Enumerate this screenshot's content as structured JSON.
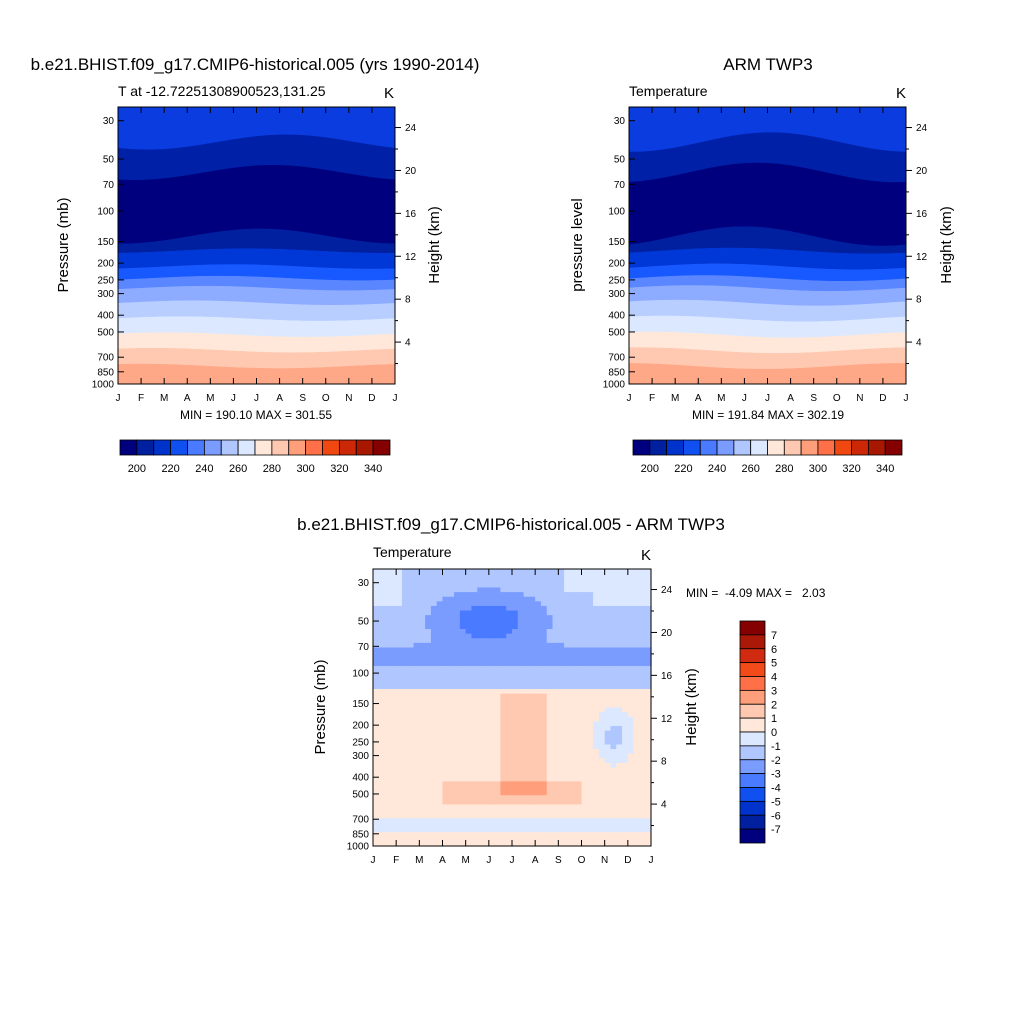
{
  "chart_data": [
    {
      "type": "heatmap",
      "title": "b.e21.BHIST.f09_g17.CMIP6-historical.005 (yrs 1990-2014)",
      "subtitle_left": "T at -12.72251308900523,131.25",
      "units": "K",
      "ylabel": "Pressure (mb)",
      "ylabel_right": "Height (km)",
      "x_ticks": [
        "J",
        "F",
        "M",
        "A",
        "M",
        "J",
        "J",
        "A",
        "S",
        "O",
        "N",
        "D",
        "J"
      ],
      "y_ticks": [
        30,
        50,
        70,
        100,
        150,
        200,
        250,
        300,
        400,
        500,
        700,
        850,
        1000
      ],
      "y_right_ticks": [
        24,
        20,
        16,
        12,
        8,
        4
      ],
      "ylim": [
        1000,
        25
      ],
      "stats": "MIN = 190.10 MAX = 301.55",
      "colorbar_ticks": [
        200,
        220,
        240,
        260,
        280,
        300,
        320,
        340
      ],
      "colorbar_colors": [
        "#00007f",
        "#0020a0",
        "#0033cc",
        "#1050f0",
        "#4a7aff",
        "#7a9cff",
        "#b0c6ff",
        "#dbe8ff",
        "#ffe8da",
        "#ffc8b0",
        "#ff9e7a",
        "#ff7048",
        "#f04810",
        "#cc2808",
        "#a81800",
        "#850000"
      ],
      "levels_approx_p": [
        25,
        40,
        60,
        140,
        170,
        210,
        245,
        280,
        340,
        420,
        520,
        640,
        790,
        1000
      ],
      "level_colors": [
        "#0a3ce0",
        "#0020a8",
        "#00007f",
        "#0020a0",
        "#0038d8",
        "#1858ff",
        "#5a86ff",
        "#8eacff",
        "#b8ceff",
        "#dbe8ff",
        "#ffe8da",
        "#ffc8b0",
        "#ffa888",
        "#ff8858"
      ]
    },
    {
      "type": "heatmap",
      "title": "ARM TWP3",
      "subtitle_left": "Temperature",
      "units": "K",
      "ylabel": "pressure level",
      "ylabel_right": "Height (km)",
      "x_ticks": [
        "J",
        "F",
        "M",
        "A",
        "M",
        "J",
        "J",
        "A",
        "S",
        "O",
        "N",
        "D",
        "J"
      ],
      "y_ticks": [
        30,
        50,
        70,
        100,
        150,
        200,
        250,
        300,
        400,
        500,
        700,
        850,
        1000
      ],
      "y_right_ticks": [
        24,
        20,
        16,
        12,
        8,
        4
      ],
      "ylim": [
        1000,
        25
      ],
      "stats": "MIN = 191.84 MAX = 302.19",
      "colorbar_ticks": [
        200,
        220,
        240,
        260,
        280,
        300,
        320,
        340
      ]
    },
    {
      "type": "heatmap",
      "title": "b.e21.BHIST.f09_g17.CMIP6-historical.005 - ARM TWP3",
      "subtitle_left": "Temperature",
      "units": "K",
      "ylabel": "Pressure (mb)",
      "ylabel_right": "Height (km)",
      "x_ticks": [
        "J",
        "F",
        "M",
        "A",
        "M",
        "J",
        "J",
        "A",
        "S",
        "O",
        "N",
        "D",
        "J"
      ],
      "y_ticks": [
        30,
        50,
        70,
        100,
        150,
        200,
        250,
        300,
        400,
        500,
        700,
        850,
        1000
      ],
      "y_right_ticks": [
        24,
        20,
        16,
        12,
        8,
        4
      ],
      "ylim": [
        1000,
        25
      ],
      "stats_label": "MIN =  -4.09 MAX =   2.03",
      "colorbar_ticks": [
        7,
        6,
        5,
        4,
        3,
        2,
        1,
        0,
        -1,
        -2,
        -3,
        -4,
        -5,
        -6,
        -7
      ],
      "colorbar_colors": [
        "#850000",
        "#aa1808",
        "#d02a10",
        "#f24a18",
        "#ff7048",
        "#ff9e7a",
        "#ffc8b0",
        "#ffe8da",
        "#dbe8ff",
        "#b0c6ff",
        "#7a9cff",
        "#4a7aff",
        "#1050f0",
        "#0033cc",
        "#0020a0",
        "#00007f"
      ]
    }
  ]
}
